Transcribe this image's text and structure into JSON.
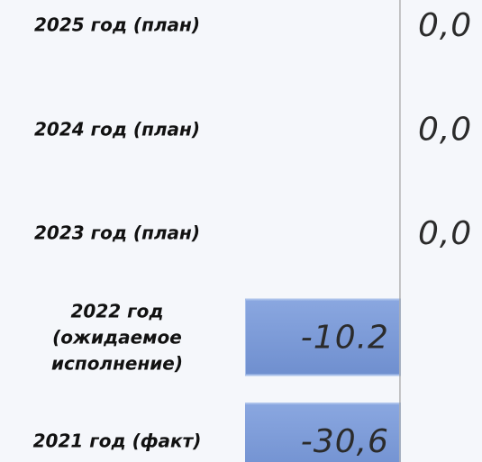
{
  "chart_data": {
    "type": "barh",
    "categories": [
      "2025 год (план)",
      "2024 год (план)",
      "2023 год (план)",
      "2022 год (ожидаемое исполнение)",
      "2021 год (факт)"
    ],
    "values": [
      0,
      0,
      0,
      -10.2,
      -30.6
    ],
    "value_labels": [
      "0,0",
      "0,0",
      "0,0",
      "-10.2",
      "-30,6"
    ],
    "color": "#7b9ad6",
    "xlim": [
      -10.2,
      5.4
    ]
  }
}
